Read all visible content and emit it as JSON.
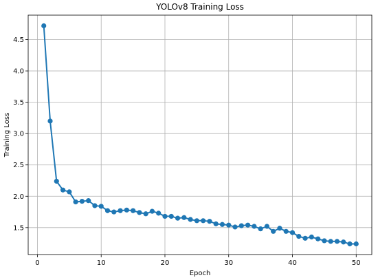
{
  "chart_data": {
    "type": "line",
    "title": "YOLOv8 Training Loss",
    "xlabel": "Epoch",
    "ylabel": "Training Loss",
    "xlim": [
      -1.45,
      52.45
    ],
    "ylim": [
      1.07,
      4.89
    ],
    "xticks": [
      0,
      10,
      20,
      30,
      40,
      50
    ],
    "yticks": [
      1.5,
      2.0,
      2.5,
      3.0,
      3.5,
      4.0,
      4.5
    ],
    "ytick_labels": [
      "1.5",
      "2.0",
      "2.5",
      "3.0",
      "3.5",
      "4.0",
      "4.5"
    ],
    "grid": true,
    "color": "#1f77b4",
    "series": [
      {
        "x": [
          1,
          2,
          3,
          4,
          5,
          6,
          7,
          8,
          9,
          10,
          11,
          12,
          13,
          14,
          15,
          16,
          17,
          18,
          19,
          20,
          21,
          22,
          23,
          24,
          25,
          26,
          27,
          28,
          29,
          30,
          31,
          32,
          33,
          34,
          35,
          36,
          37,
          38,
          39,
          40,
          41,
          42,
          43,
          44,
          45,
          46,
          47,
          48,
          49,
          50
        ],
        "values": [
          4.72,
          3.2,
          2.24,
          2.1,
          2.07,
          1.91,
          1.92,
          1.93,
          1.85,
          1.84,
          1.77,
          1.75,
          1.77,
          1.78,
          1.77,
          1.74,
          1.72,
          1.76,
          1.73,
          1.68,
          1.68,
          1.65,
          1.66,
          1.63,
          1.61,
          1.61,
          1.6,
          1.56,
          1.55,
          1.54,
          1.51,
          1.53,
          1.54,
          1.52,
          1.48,
          1.52,
          1.44,
          1.49,
          1.44,
          1.42,
          1.36,
          1.33,
          1.35,
          1.32,
          1.29,
          1.28,
          1.28,
          1.27,
          1.24,
          1.24
        ]
      }
    ]
  }
}
